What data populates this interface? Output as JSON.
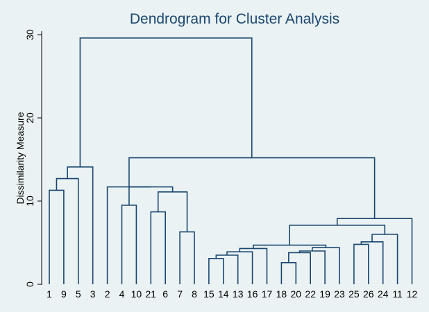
{
  "chart_data": {
    "type": "dendrogram",
    "title": "Dendrogram for Cluster Analysis",
    "xlabel": "",
    "ylabel": "Dissimilarity Measure",
    "ylim": [
      0,
      30
    ],
    "yticks": [
      0,
      10,
      20,
      30
    ],
    "grid": false,
    "leaf_order": [
      "1",
      "9",
      "5",
      "3",
      "2",
      "4",
      "10",
      "21",
      "6",
      "7",
      "8",
      "15",
      "14",
      "13",
      "16",
      "17",
      "18",
      "20",
      "22",
      "19",
      "23",
      "25",
      "26",
      "24",
      "11",
      "12"
    ],
    "merges": [
      {
        "left": "1",
        "right": "9",
        "height": 11.3
      },
      {
        "left": "1+9",
        "right": "5",
        "height": 12.7
      },
      {
        "left": "1+9+5",
        "right": "3",
        "height": 14.1
      },
      {
        "left": "4",
        "right": "10",
        "height": 9.5
      },
      {
        "left": "21",
        "right": "6",
        "height": 8.7
      },
      {
        "left": "7",
        "right": "8",
        "height": 6.3
      },
      {
        "left": "21+6",
        "right": "7+8",
        "height": 11.1
      },
      {
        "left": "4+10",
        "right": "21+6+7+8",
        "height": 11.7
      },
      {
        "left": "15",
        "right": "14",
        "height": 3.1
      },
      {
        "left": "15+14",
        "right": "13",
        "height": 3.5
      },
      {
        "left": "15+14+13",
        "right": "16",
        "height": 3.9
      },
      {
        "left": "15+14+13+16",
        "right": "17",
        "height": 4.3
      },
      {
        "left": "18",
        "right": "20",
        "height": 2.6
      },
      {
        "left": "18+20",
        "right": "22",
        "height": 3.8
      },
      {
        "left": "18+20+22",
        "right": "19",
        "height": 4.0
      },
      {
        "left": "18+20+22+19",
        "right": "23",
        "height": 4.4
      },
      {
        "left": "15..17",
        "right": "18..23",
        "height": 4.7
      },
      {
        "left": "25",
        "right": "26",
        "height": 4.8
      },
      {
        "left": "25+26",
        "right": "24",
        "height": 5.1
      },
      {
        "left": "25+26+24",
        "right": "11",
        "height": 6.0
      },
      {
        "left": "15..23",
        "right": "25..11",
        "height": 7.1
      },
      {
        "left": "15..11",
        "right": "12",
        "height": 7.9
      },
      {
        "left": "2",
        "right": "4..8",
        "height": 11.7
      },
      {
        "left": "2..8",
        "right": "15..12",
        "height": 15.2
      },
      {
        "left": "1..3",
        "right": "2..12",
        "height": 29.6
      }
    ]
  }
}
